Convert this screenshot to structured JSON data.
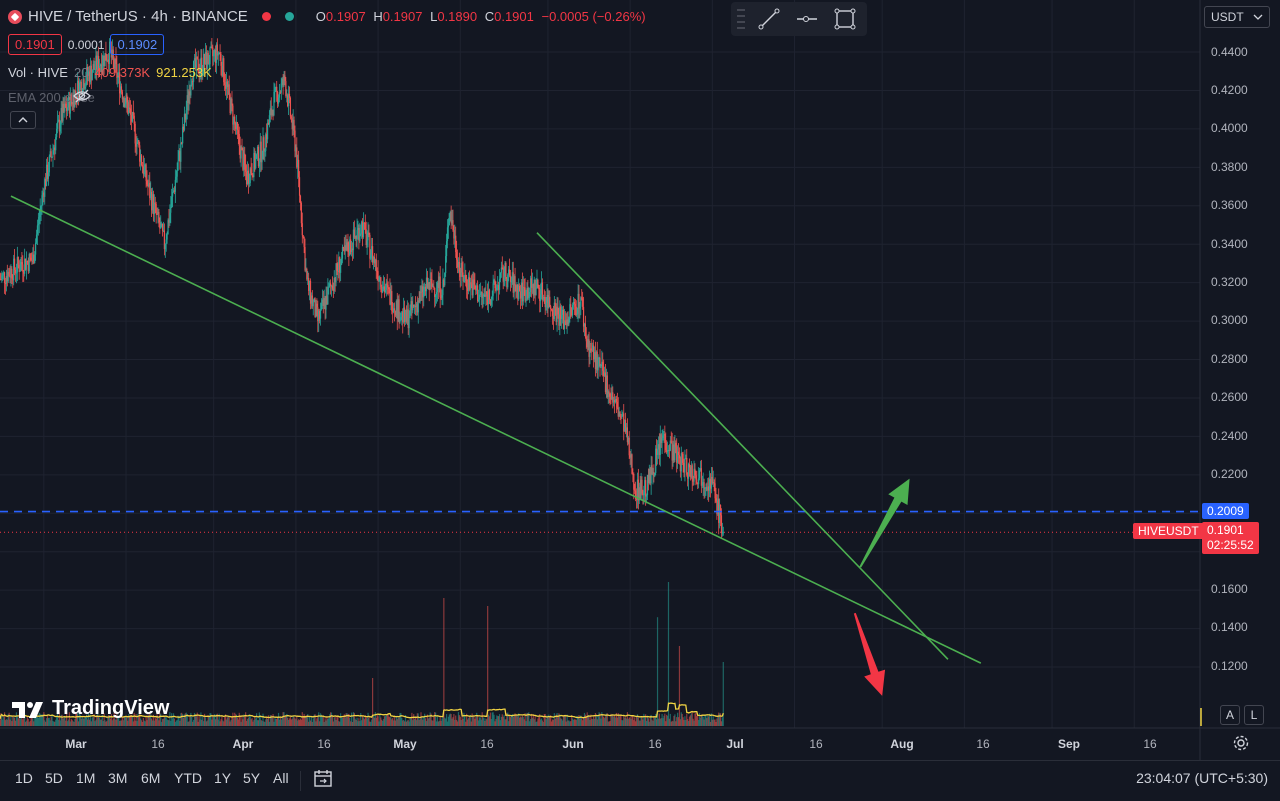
{
  "header": {
    "symbol_title": "HIVE / TetherUS · 4h · BINANCE",
    "ohlc": [
      {
        "key": "O",
        "value": "0.1907"
      },
      {
        "key": "H",
        "value": "0.1907"
      },
      {
        "key": "L",
        "value": "0.1890"
      },
      {
        "key": "C",
        "value": "0.1901"
      }
    ],
    "change": "−0.0005 (−0.26%)",
    "bid": "0.1901",
    "spread": "0.0001",
    "ask": "0.1902",
    "volume_label": "Vol · HIVE",
    "volume_length": "20",
    "volume_value": "409.373K",
    "volume_ma": "921.253K",
    "ema_label": "EMA 200 close"
  },
  "currency": "USDT",
  "price_axis": [
    "0.4400",
    "0.4200",
    "0.4000",
    "0.3800",
    "0.3600",
    "0.3400",
    "0.3200",
    "0.3000",
    "0.2800",
    "0.2600",
    "0.2400",
    "0.2200",
    "0.2009",
    "0.1901",
    "0.1600",
    "0.1400",
    "0.1200"
  ],
  "horizontal_line_price": "0.2009",
  "last_price": {
    "symbol": "HIVEUSDT",
    "price": "0.1901",
    "countdown": "02:25:52"
  },
  "time_axis": [
    {
      "label": "Mar",
      "bold": true
    },
    {
      "label": "16",
      "bold": false
    },
    {
      "label": "Apr",
      "bold": true
    },
    {
      "label": "16",
      "bold": false
    },
    {
      "label": "May",
      "bold": true
    },
    {
      "label": "16",
      "bold": false
    },
    {
      "label": "Jun",
      "bold": true
    },
    {
      "label": "16",
      "bold": false
    },
    {
      "label": "Jul",
      "bold": true
    },
    {
      "label": "16",
      "bold": false
    },
    {
      "label": "Aug",
      "bold": true
    },
    {
      "label": "16",
      "bold": false
    },
    {
      "label": "Sep",
      "bold": true
    },
    {
      "label": "16",
      "bold": false
    }
  ],
  "timeframes": [
    "1D",
    "5D",
    "1M",
    "3M",
    "6M",
    "YTD",
    "1Y",
    "5Y",
    "All"
  ],
  "clock": "23:04:07 (UTC+5:30)",
  "logo_text": "TradingView",
  "scale_buttons": {
    "auto": "A",
    "log": "L"
  },
  "colors": {
    "background": "#131722",
    "up": "#26a69a",
    "down": "#ef5350",
    "trendline": "#4caf50",
    "arrow_up": "#4caf50",
    "arrow_down": "#f23645",
    "hline": "#2962ff",
    "volume_ma": "#f0d343"
  },
  "icons": [
    "hive-logo-icon",
    "line-tool-icon",
    "horizontal-ray-icon",
    "rectangle-tool-icon",
    "eye-crossed-icon",
    "chevron-up-icon",
    "compare-icon",
    "gear-icon",
    "chevron-down-icon"
  ],
  "chart_data": {
    "type": "candlestick",
    "symbol": "HIVE / TetherUS",
    "interval": "4h",
    "ylim": [
      0.1,
      0.45
    ],
    "x_range": [
      "2024-02-22",
      "2024-09-28"
    ],
    "x_ticks": [
      "Mar",
      "16",
      "Apr",
      "16",
      "May",
      "16",
      "Jun",
      "16",
      "Jul",
      "16",
      "Aug",
      "16",
      "Sep",
      "16"
    ],
    "close_path": [
      [
        "2024-02-22",
        0.322
      ],
      [
        "2024-02-26",
        0.33
      ],
      [
        "2024-02-28",
        0.332
      ],
      [
        "2024-03-01",
        0.37
      ],
      [
        "2024-03-04",
        0.405
      ],
      [
        "2024-03-08",
        0.425
      ],
      [
        "2024-03-13",
        0.44
      ],
      [
        "2024-03-17",
        0.405
      ],
      [
        "2024-03-20",
        0.37
      ],
      [
        "2024-03-23",
        0.34
      ],
      [
        "2024-03-26",
        0.39
      ],
      [
        "2024-03-28",
        0.43
      ],
      [
        "2024-04-02",
        0.44
      ],
      [
        "2024-04-05",
        0.4
      ],
      [
        "2024-04-07",
        0.375
      ],
      [
        "2024-04-10",
        0.39
      ],
      [
        "2024-04-12",
        0.415
      ],
      [
        "2024-04-14",
        0.425
      ],
      [
        "2024-04-16",
        0.39
      ],
      [
        "2024-04-18",
        0.32
      ],
      [
        "2024-04-20",
        0.3
      ],
      [
        "2024-04-24",
        0.33
      ],
      [
        "2024-04-28",
        0.35
      ],
      [
        "2024-05-02",
        0.318
      ],
      [
        "2024-05-06",
        0.3
      ],
      [
        "2024-05-10",
        0.318
      ],
      [
        "2024-05-13",
        0.318
      ],
      [
        "2024-05-14",
        0.36
      ],
      [
        "2024-05-16",
        0.325
      ],
      [
        "2024-05-20",
        0.312
      ],
      [
        "2024-05-22",
        0.315
      ],
      [
        "2024-05-24",
        0.325
      ],
      [
        "2024-05-27",
        0.315
      ],
      [
        "2024-05-30",
        0.318
      ],
      [
        "2024-06-02",
        0.307
      ],
      [
        "2024-06-04",
        0.3
      ],
      [
        "2024-06-07",
        0.312
      ],
      [
        "2024-06-08",
        0.29
      ],
      [
        "2024-06-11",
        0.272
      ],
      [
        "2024-06-15",
        0.245
      ],
      [
        "2024-06-17",
        0.212
      ],
      [
        "2024-06-19",
        0.213
      ],
      [
        "2024-06-22",
        0.24
      ],
      [
        "2024-06-25",
        0.228
      ],
      [
        "2024-06-27",
        0.222
      ],
      [
        "2024-06-29",
        0.22
      ],
      [
        "2024-07-01",
        0.215
      ],
      [
        "2024-07-03",
        0.1901
      ]
    ],
    "horizontal_level": 0.2009,
    "last_price": 0.1901,
    "trendlines": [
      {
        "from": [
          "2024-02-24",
          0.365
        ],
        "to": [
          "2024-08-19",
          0.122
        ]
      },
      {
        "from": [
          "2024-05-30",
          0.346
        ],
        "to": [
          "2024-08-13",
          0.124
        ]
      }
    ],
    "arrows": [
      {
        "direction": "up",
        "from": [
          "2024-07-28",
          0.172
        ],
        "to": [
          "2024-08-06",
          0.218
        ]
      },
      {
        "direction": "down",
        "from": [
          "2024-07-27",
          0.148
        ],
        "to": [
          "2024-08-01",
          0.105
        ]
      }
    ],
    "volume": {
      "spikes": [
        {
          "date": "2024-05-13",
          "height": 0.8
        },
        {
          "date": "2024-05-21",
          "height": 0.75
        },
        {
          "date": "2024-04-30",
          "height": 0.3
        },
        {
          "date": "2024-06-21",
          "height": 0.68
        },
        {
          "date": "2024-06-23",
          "height": 0.9
        },
        {
          "date": "2024-06-25",
          "height": 0.5
        },
        {
          "date": "2024-07-03",
          "height": 0.4
        }
      ]
    }
  }
}
